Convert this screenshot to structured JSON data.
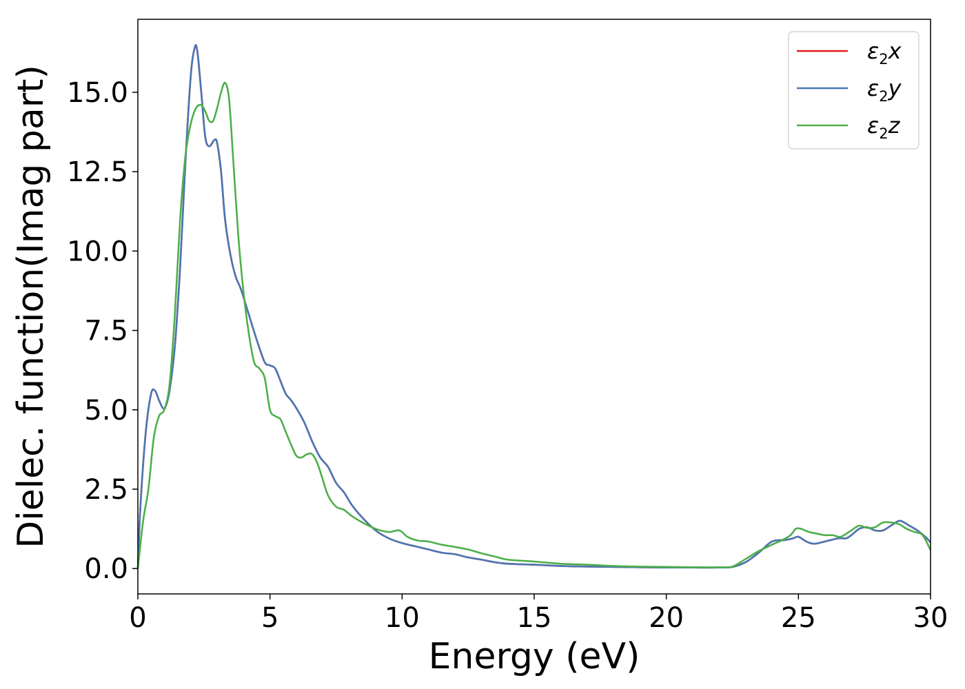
{
  "chart_data": {
    "type": "line",
    "xlabel": "Energy (eV)",
    "ylabel": "Dielec. function(Imag part)",
    "xlim": [
      0,
      30
    ],
    "ylim": [
      -0.8,
      17.3
    ],
    "xticks": [
      0,
      5,
      10,
      15,
      20,
      25,
      30
    ],
    "xtick_labels": [
      "0",
      "5",
      "10",
      "15",
      "20",
      "25",
      "30"
    ],
    "yticks": [
      0.0,
      2.5,
      5.0,
      7.5,
      10.0,
      12.5,
      15.0
    ],
    "ytick_labels": [
      "0.0",
      "2.5",
      "5.0",
      "7.5",
      "10.0",
      "12.5",
      "15.0"
    ],
    "grid": false,
    "legend_position": "top-right",
    "series": [
      {
        "name": "ε2x",
        "legend_base": "ε",
        "legend_sub": "2",
        "legend_var": "x",
        "color": "#e41a1c",
        "x": [
          0,
          0.1,
          0.3,
          0.5,
          0.65,
          0.8,
          0.95,
          1.05,
          1.2,
          1.4,
          1.6,
          1.8,
          2.0,
          2.15,
          2.25,
          2.4,
          2.55,
          2.7,
          2.9,
          3.0,
          3.15,
          3.3,
          3.5,
          3.7,
          3.9,
          4.2,
          4.5,
          4.8,
          5.0,
          5.2,
          5.4,
          5.6,
          5.8,
          6.0,
          6.3,
          6.6,
          6.9,
          7.2,
          7.5,
          7.8,
          8.1,
          8.5,
          9.0,
          9.5,
          10.0,
          10.5,
          11.0,
          11.5,
          12.0,
          12.5,
          13.0,
          13.5,
          14.0,
          15.0,
          16.0,
          17.0,
          18.0,
          19.0,
          20.0,
          21.0,
          22.0,
          22.5,
          23.0,
          23.5,
          24.0,
          24.5,
          24.8,
          25.0,
          25.3,
          25.6,
          26.0,
          26.5,
          26.8,
          27.0,
          27.3,
          27.6,
          27.9,
          28.2,
          28.5,
          28.8,
          29.0,
          29.2,
          29.5,
          29.8,
          30.0
        ],
        "y": [
          0.0,
          2.0,
          4.3,
          5.5,
          5.6,
          5.3,
          5.05,
          5.1,
          5.6,
          7.0,
          9.5,
          12.8,
          15.5,
          16.4,
          16.3,
          15.0,
          13.6,
          13.3,
          13.5,
          13.4,
          12.5,
          11.0,
          9.9,
          9.2,
          8.8,
          8.0,
          7.2,
          6.5,
          6.4,
          6.3,
          5.9,
          5.5,
          5.3,
          5.05,
          4.6,
          4.0,
          3.5,
          3.2,
          2.7,
          2.4,
          2.0,
          1.6,
          1.2,
          0.95,
          0.8,
          0.7,
          0.6,
          0.5,
          0.45,
          0.35,
          0.28,
          0.2,
          0.15,
          0.12,
          0.08,
          0.06,
          0.05,
          0.04,
          0.03,
          0.03,
          0.03,
          0.05,
          0.2,
          0.5,
          0.85,
          0.9,
          0.95,
          1.0,
          0.85,
          0.78,
          0.85,
          0.95,
          0.95,
          1.05,
          1.25,
          1.3,
          1.2,
          1.2,
          1.35,
          1.5,
          1.45,
          1.35,
          1.2,
          1.0,
          0.82
        ]
      },
      {
        "name": "ε2y",
        "legend_base": "ε",
        "legend_sub": "2",
        "legend_var": "y",
        "color": "#4a77b4",
        "x": [
          0,
          0.1,
          0.3,
          0.5,
          0.65,
          0.8,
          0.95,
          1.05,
          1.2,
          1.4,
          1.6,
          1.8,
          2.0,
          2.15,
          2.25,
          2.4,
          2.55,
          2.7,
          2.9,
          3.0,
          3.15,
          3.3,
          3.5,
          3.7,
          3.9,
          4.2,
          4.5,
          4.8,
          5.0,
          5.2,
          5.4,
          5.6,
          5.8,
          6.0,
          6.3,
          6.6,
          6.9,
          7.2,
          7.5,
          7.8,
          8.1,
          8.5,
          9.0,
          9.5,
          10.0,
          10.5,
          11.0,
          11.5,
          12.0,
          12.5,
          13.0,
          13.5,
          14.0,
          15.0,
          16.0,
          17.0,
          18.0,
          19.0,
          20.0,
          21.0,
          22.0,
          22.5,
          23.0,
          23.5,
          24.0,
          24.5,
          24.8,
          25.0,
          25.3,
          25.6,
          26.0,
          26.5,
          26.8,
          27.0,
          27.3,
          27.6,
          27.9,
          28.2,
          28.5,
          28.8,
          29.0,
          29.2,
          29.5,
          29.8,
          30.0
        ],
        "y": [
          0.0,
          2.0,
          4.3,
          5.5,
          5.6,
          5.3,
          5.05,
          5.1,
          5.6,
          7.0,
          9.5,
          12.8,
          15.5,
          16.4,
          16.3,
          15.0,
          13.6,
          13.3,
          13.5,
          13.4,
          12.5,
          11.0,
          9.9,
          9.2,
          8.8,
          8.0,
          7.2,
          6.5,
          6.4,
          6.3,
          5.9,
          5.5,
          5.3,
          5.05,
          4.6,
          4.0,
          3.5,
          3.2,
          2.7,
          2.4,
          2.0,
          1.6,
          1.2,
          0.95,
          0.8,
          0.7,
          0.6,
          0.5,
          0.45,
          0.35,
          0.28,
          0.2,
          0.15,
          0.12,
          0.08,
          0.06,
          0.05,
          0.04,
          0.03,
          0.03,
          0.03,
          0.05,
          0.2,
          0.5,
          0.85,
          0.9,
          0.95,
          1.0,
          0.85,
          0.78,
          0.85,
          0.95,
          0.95,
          1.05,
          1.25,
          1.3,
          1.2,
          1.2,
          1.35,
          1.5,
          1.45,
          1.35,
          1.2,
          1.0,
          0.82
        ]
      },
      {
        "name": "ε2z",
        "legend_base": "ε",
        "legend_sub": "2",
        "legend_var": "z",
        "color": "#4daf4a",
        "x": [
          0,
          0.2,
          0.4,
          0.6,
          0.8,
          1.0,
          1.2,
          1.4,
          1.6,
          1.8,
          2.0,
          2.2,
          2.4,
          2.55,
          2.7,
          2.85,
          3.0,
          3.15,
          3.3,
          3.45,
          3.6,
          3.8,
          4.0,
          4.2,
          4.4,
          4.6,
          4.8,
          5.0,
          5.2,
          5.4,
          5.6,
          5.8,
          6.0,
          6.2,
          6.4,
          6.6,
          6.8,
          7.0,
          7.2,
          7.5,
          7.8,
          8.1,
          8.5,
          9.0,
          9.5,
          9.9,
          10.2,
          10.6,
          11.0,
          11.5,
          12.0,
          12.5,
          13.0,
          13.5,
          14.0,
          15.0,
          16.0,
          17.0,
          18.0,
          19.0,
          20.0,
          21.0,
          22.0,
          22.5,
          23.0,
          23.5,
          24.0,
          24.4,
          24.7,
          24.9,
          25.1,
          25.4,
          25.7,
          26.0,
          26.3,
          26.6,
          27.0,
          27.3,
          27.6,
          27.9,
          28.2,
          28.5,
          28.8,
          29.1,
          29.4,
          29.7,
          30.0
        ],
        "y": [
          0.0,
          1.5,
          2.5,
          4.1,
          4.8,
          5.0,
          5.8,
          8.0,
          11.0,
          13.0,
          14.0,
          14.5,
          14.6,
          14.4,
          14.1,
          14.1,
          14.5,
          15.0,
          15.3,
          14.8,
          13.0,
          10.5,
          8.7,
          7.4,
          6.5,
          6.3,
          6.0,
          5.0,
          4.8,
          4.7,
          4.3,
          3.9,
          3.55,
          3.5,
          3.6,
          3.6,
          3.3,
          2.8,
          2.3,
          1.95,
          1.85,
          1.65,
          1.45,
          1.25,
          1.15,
          1.2,
          1.0,
          0.88,
          0.85,
          0.75,
          0.68,
          0.6,
          0.48,
          0.38,
          0.28,
          0.22,
          0.15,
          0.12,
          0.08,
          0.06,
          0.05,
          0.04,
          0.04,
          0.06,
          0.3,
          0.55,
          0.75,
          0.9,
          1.05,
          1.25,
          1.25,
          1.15,
          1.1,
          1.05,
          1.05,
          1.0,
          1.2,
          1.35,
          1.28,
          1.3,
          1.45,
          1.45,
          1.4,
          1.25,
          1.15,
          1.05,
          0.58
        ]
      }
    ]
  }
}
